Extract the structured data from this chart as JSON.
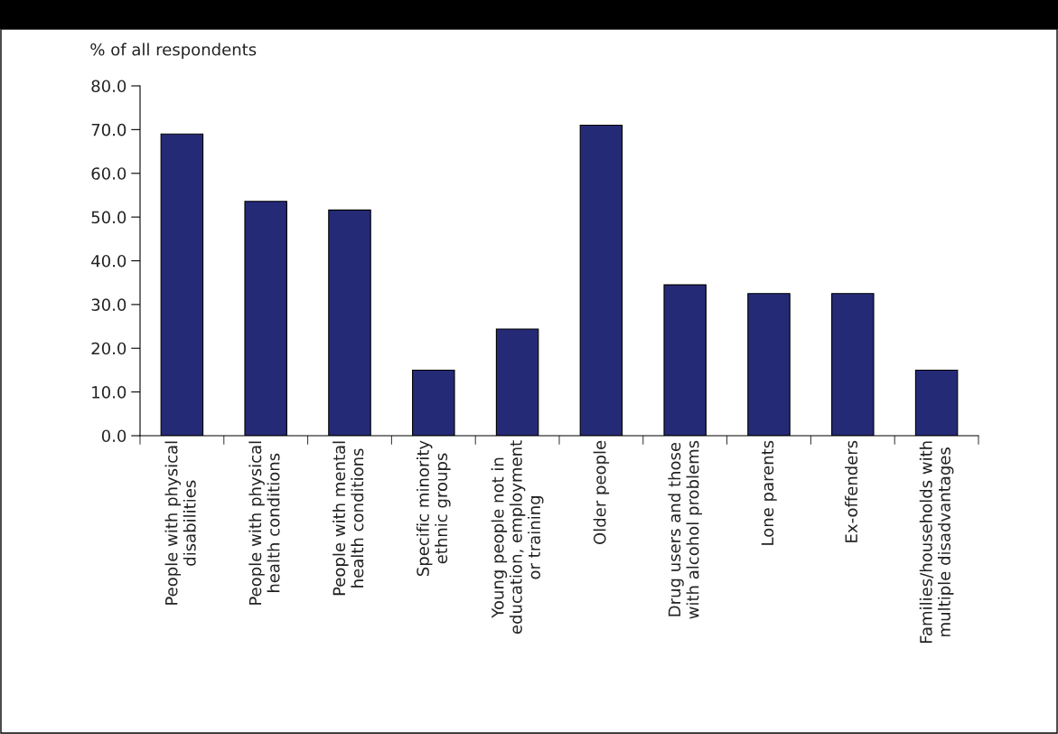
{
  "chart_data": {
    "type": "bar",
    "ylabel": "% of all respondents",
    "categories": [
      "People with physical\ndisabilities",
      "People with physical\nhealth conditions",
      "People with mental\nhealth conditions",
      "Specific minority\nethnic groups",
      "Young people not in\neducation, employment\nor training",
      "Older people",
      "Drug users and those\nwith alcohol problems",
      "Lone parents",
      "Ex-offenders",
      "Families/households with\nmultiple disadvantages"
    ],
    "values": [
      69.0,
      53.6,
      51.6,
      15.0,
      24.4,
      71.0,
      34.5,
      32.5,
      32.5,
      15.0
    ],
    "color": "#252a77",
    "ylim": [
      0,
      80
    ],
    "yticks": [
      {
        "value": 0,
        "label": "0.0"
      },
      {
        "value": 10,
        "label": "10.0"
      },
      {
        "value": 20,
        "label": "20.0"
      },
      {
        "value": 30,
        "label": "30.0"
      },
      {
        "value": 40,
        "label": "40.0"
      },
      {
        "value": 50,
        "label": "50.0"
      },
      {
        "value": 60,
        "label": "60.0"
      },
      {
        "value": 70,
        "label": "70.0"
      },
      {
        "value": 80,
        "label": "80.0"
      }
    ],
    "grid": false,
    "legend": false
  }
}
